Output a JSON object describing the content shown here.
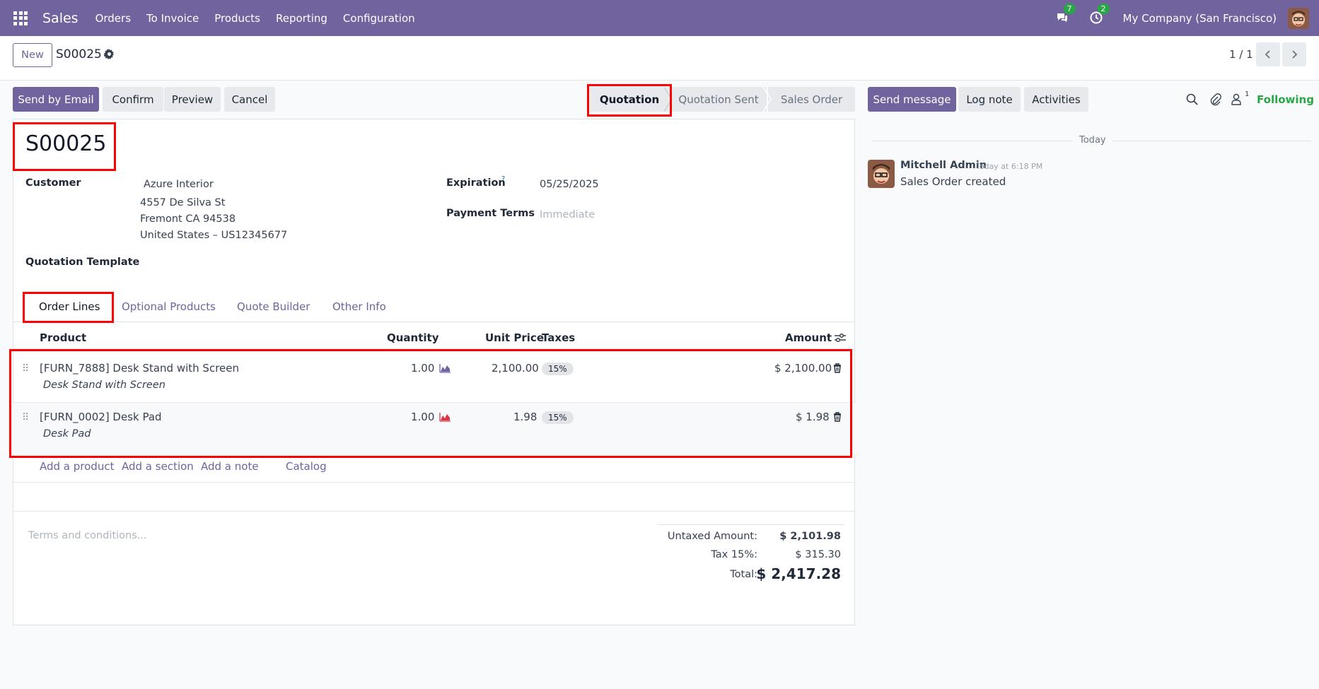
{
  "navbar": {
    "app_name": "Sales",
    "menu": [
      "Orders",
      "To Invoice",
      "Products",
      "Reporting",
      "Configuration"
    ],
    "messages_badge": "7",
    "activities_badge": "2",
    "company": "My Company (San Francisco)"
  },
  "control_panel": {
    "new_label": "New",
    "record_name": "S00025",
    "pager": "1 / 1"
  },
  "actions": {
    "send_email": "Send by Email",
    "confirm": "Confirm",
    "preview": "Preview",
    "cancel": "Cancel"
  },
  "statusbar": {
    "steps": [
      "Quotation",
      "Quotation Sent",
      "Sales Order"
    ],
    "active": "Quotation"
  },
  "form": {
    "title": "S00025",
    "customer_label": "Customer",
    "customer_name": "Azure Interior",
    "address_line1": "4557 De Silva St",
    "address_line2": "Fremont CA 94538",
    "address_line3": "United States – US12345677",
    "expiration_label": "Expiration",
    "expiration_help": "?",
    "expiration_value": "05/25/2025",
    "payment_terms_label": "Payment Terms",
    "payment_terms_placeholder": "Immediate",
    "quotation_template_label": "Quotation Template"
  },
  "tabs": [
    "Order Lines",
    "Optional Products",
    "Quote Builder",
    "Other Info"
  ],
  "order_lines": {
    "columns": {
      "product": "Product",
      "quantity": "Quantity",
      "unit_price": "Unit Price",
      "taxes": "Taxes",
      "amount": "Amount"
    },
    "rows": [
      {
        "product": "[FURN_7888] Desk Stand with Screen",
        "description": "Desk Stand with Screen",
        "quantity": "1.00",
        "unit_price": "2,100.00",
        "tax": "15%",
        "amount": "$ 2,100.00",
        "forecast_color": "#71639e"
      },
      {
        "product": "[FURN_0002] Desk Pad",
        "description": "Desk Pad",
        "quantity": "1.00",
        "unit_price": "1.98",
        "tax": "15%",
        "amount": "$ 1.98",
        "forecast_color": "#dc3545"
      }
    ],
    "add_links": [
      "Add a product",
      "Add a section",
      "Add a note",
      "Catalog"
    ]
  },
  "footer": {
    "terms_placeholder": "Terms and conditions...",
    "untaxed_label": "Untaxed Amount:",
    "untaxed_value": "$ 2,101.98",
    "tax_label": "Tax 15%:",
    "tax_value": "$ 315.30",
    "total_label": "Total:",
    "total_value": "$ 2,417.28"
  },
  "chatter": {
    "send_message": "Send message",
    "log_note": "Log note",
    "activities": "Activities",
    "followers_count": "1",
    "following": "Following",
    "date_separator": "Today",
    "message": {
      "author": "Mitchell Admin",
      "time": "Today at 6:18 PM",
      "body": "Sales Order created"
    }
  },
  "colors": {
    "brand": "#71639e",
    "highlight": "#ff0000",
    "success": "#28a745"
  }
}
